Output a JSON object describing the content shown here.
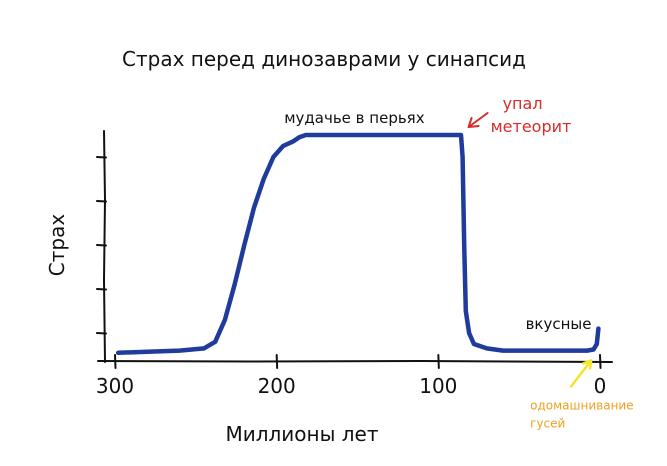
{
  "chart_data": {
    "type": "line",
    "title": "Страх перед динозаврами у синапсид",
    "xlabel": "Миллионы лет",
    "ylabel": "Страх",
    "x_reversed": true,
    "xlim": [
      300,
      0
    ],
    "ylim": [
      0,
      10
    ],
    "xticks": [
      {
        "value": 300,
        "label": "300"
      },
      {
        "value": 200,
        "label": "200"
      },
      {
        "value": 100,
        "label": "100"
      },
      {
        "value": 0,
        "label": "0"
      }
    ],
    "y_tick_values": [
      1,
      3,
      5,
      7,
      9
    ],
    "grid": false,
    "series": [
      {
        "x": [
          298,
          280,
          260,
          245,
          238,
          232,
          226,
          220,
          214,
          208,
          202,
          196,
          190,
          186,
          182,
          175,
          160,
          140,
          120,
          100,
          90,
          86,
          85,
          84,
          83,
          81,
          78,
          70,
          60,
          40,
          20,
          8,
          4,
          2,
          1
        ],
        "y": [
          0.1,
          0.15,
          0.2,
          0.3,
          0.6,
          1.6,
          3.2,
          5.0,
          6.7,
          8.0,
          9.0,
          9.5,
          9.7,
          9.9,
          10.0,
          10.0,
          10.0,
          10.0,
          10.0,
          10.0,
          10.0,
          10.0,
          9.0,
          5.0,
          2.0,
          1.0,
          0.5,
          0.3,
          0.2,
          0.2,
          0.2,
          0.2,
          0.25,
          0.5,
          1.2
        ],
        "color": "#1f3b9c"
      }
    ],
    "annotations": [
      {
        "text": "мудачье в перьях",
        "x": 155,
        "y": 10.0,
        "color": "#111111"
      },
      {
        "text_lines": [
          "упал",
          "метеорит"
        ],
        "x": 85,
        "y": 10.0,
        "color": "#d92b2b"
      },
      {
        "text": "вкусные",
        "x": 4,
        "y": 0.5,
        "color": "#111111"
      },
      {
        "text_lines": [
          "одомашнивание",
          "гусей"
        ],
        "x": 3,
        "y": 0.3,
        "color": "#f0a020"
      }
    ],
    "colors": {
      "line": "#1f3b9c",
      "axis": "#111111",
      "meteor": "#d92b2b",
      "geese_text": "#f0a020",
      "geese_arrow": "#f5e42a"
    }
  }
}
